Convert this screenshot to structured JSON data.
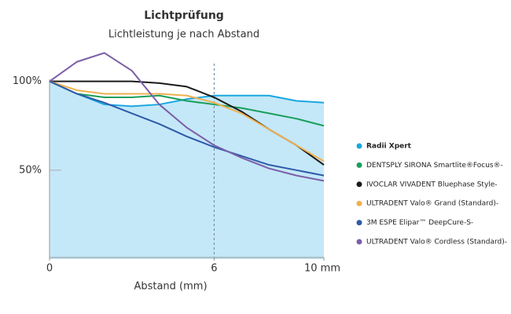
{
  "chart_data": {
    "type": "line",
    "title": "Lichtprüfung",
    "subtitle": "Lichtleistung je nach Abstand",
    "x_label": "Abstand (mm)",
    "x": [
      0,
      1,
      2,
      3,
      4,
      5,
      6,
      7,
      8,
      9,
      10
    ],
    "xlim": [
      0,
      10
    ],
    "xticks": [
      0,
      6,
      {
        "value": 10,
        "label": "10 mm"
      }
    ],
    "ylim": [
      0,
      110
    ],
    "yticks": [
      {
        "value": 50,
        "label": "50%"
      },
      {
        "value": 100,
        "label": "100%"
      }
    ],
    "reference_x": 6,
    "fill_series": 0,
    "fill_color": "#c4e8f8",
    "series": [
      {
        "name": "Radii Xpert",
        "color": "#1aa7e0",
        "values": [
          100,
          93,
          87,
          86,
          87,
          90,
          92,
          92,
          92,
          89,
          88
        ]
      },
      {
        "name": "DENTSPLY SIRONA Smartlite®Focus®-",
        "color": "#1a9e5a",
        "values": [
          100,
          93,
          91,
          91,
          92,
          89,
          87,
          85,
          82,
          79,
          75
        ]
      },
      {
        "name": "IVOCLAR VIVADENT Bluephase Style-",
        "color": "#1a1a1a",
        "values": [
          100,
          100,
          100,
          100,
          99,
          97,
          91,
          83,
          73,
          64,
          53
        ]
      },
      {
        "name": "ULTRADENT Valo® Grand (Standard)-",
        "color": "#f0b050",
        "values": [
          100,
          95,
          93,
          93,
          93,
          92,
          88,
          82,
          73,
          64,
          55
        ]
      },
      {
        "name": "3M ESPE Elipar™ DeepCure-S-",
        "color": "#2e5aa8",
        "values": [
          100,
          93,
          88,
          82,
          76,
          69,
          63,
          58,
          53,
          50,
          47
        ]
      },
      {
        "name": "ULTRADENT Valo® Cordless (Standard)-",
        "color": "#7b5ea7",
        "values": [
          100,
          111,
          116,
          106,
          87,
          74,
          64,
          57,
          51,
          47,
          44
        ]
      }
    ]
  }
}
